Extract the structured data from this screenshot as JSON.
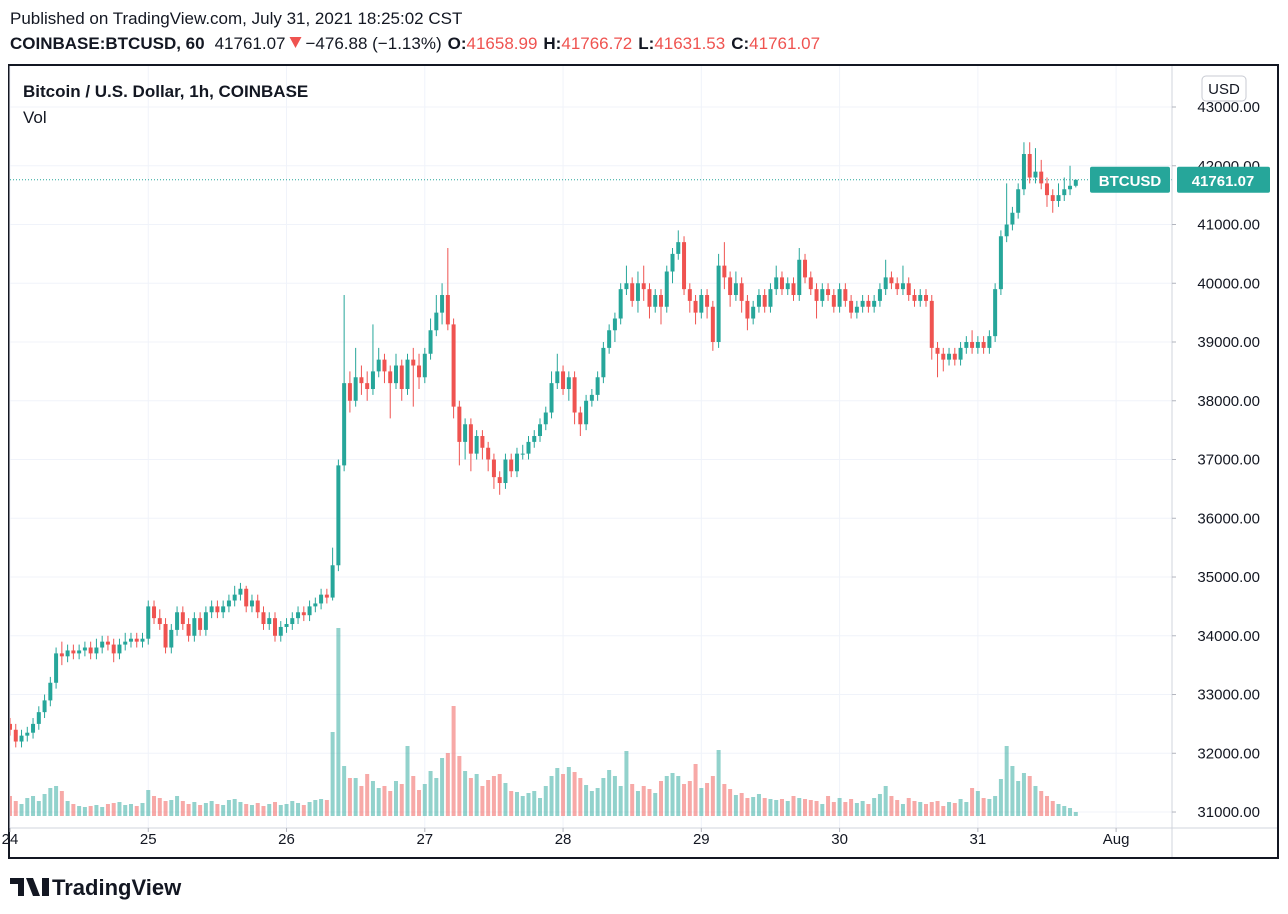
{
  "header": {
    "published": "Published on TradingView.com, July 31, 2021 18:25:02 CST",
    "symbol": "COINBASE:BTCUSD, 60",
    "change": "−476.88 (−1.13%)",
    "o_label": "O:",
    "h_label": "H:",
    "l_label": "L:",
    "c_label": "C:"
  },
  "footer": {
    "brand": "TradingView"
  },
  "chart_data": {
    "type": "candlestick",
    "title": "Bitcoin / U.S. Dollar, 1h, COINBASE",
    "volume_label": "Vol",
    "currency": "USD",
    "symbol": "BTCUSD",
    "up_color": "#26a69a",
    "down_color": "#ef5350",
    "grid": true,
    "xlim": [
      0,
      201.7
    ],
    "xticks": [
      {
        "value": 0,
        "label": "24"
      },
      {
        "value": 24,
        "label": "25"
      },
      {
        "value": 48,
        "label": "26"
      },
      {
        "value": 72,
        "label": "27"
      },
      {
        "value": 96,
        "label": "28"
      },
      {
        "value": 120,
        "label": "29"
      },
      {
        "value": 144,
        "label": "30"
      },
      {
        "value": 168,
        "label": "31"
      },
      {
        "value": 192,
        "label": "Aug"
      }
    ],
    "ylim": [
      30728,
      43698
    ],
    "yticks": [
      {
        "value": 31000,
        "label": "31000.00"
      },
      {
        "value": 32000,
        "label": "32000.00"
      },
      {
        "value": 33000,
        "label": "33000.00"
      },
      {
        "value": 34000,
        "label": "34000.00"
      },
      {
        "value": 35000,
        "label": "35000.00"
      },
      {
        "value": 36000,
        "label": "36000.00"
      },
      {
        "value": 37000,
        "label": "37000.00"
      },
      {
        "value": 38000,
        "label": "38000.00"
      },
      {
        "value": 39000,
        "label": "39000.00"
      },
      {
        "value": 40000,
        "label": "40000.00"
      },
      {
        "value": 41000,
        "label": "41000.00"
      },
      {
        "value": 42000,
        "label": "42000.00"
      },
      {
        "value": 43000,
        "label": "43000.00"
      }
    ],
    "vlim": [
      0,
      2500
    ],
    "open": [
      32500,
      32400,
      32200,
      32300,
      32350,
      32500,
      32700,
      32900,
      33200,
      33700,
      33650,
      33750,
      33700,
      33750,
      33800,
      33700,
      33800,
      33900,
      33850,
      33700,
      33850,
      33900,
      33950,
      33900,
      33950,
      34500,
      34300,
      34200,
      33800,
      34100,
      34400,
      34200,
      34000,
      34300,
      34100,
      34400,
      34500,
      34400,
      34500,
      34600,
      34700,
      34800,
      34500,
      34600,
      34400,
      34200,
      34300,
      34000,
      34150,
      34200,
      34300,
      34400,
      34350,
      34500,
      34550,
      34700,
      34650,
      35200,
      36900,
      38300,
      38000,
      38400,
      38300,
      38200,
      38500,
      38700,
      38500,
      38300,
      38600,
      38200,
      38700,
      38600,
      38400,
      38800,
      39200,
      39500,
      39800,
      39300,
      37900,
      37300,
      37600,
      37100,
      37400,
      37200,
      37000,
      36700,
      36600,
      37000,
      36800,
      37100,
      37100,
      37300,
      37400,
      37600,
      37800,
      38300,
      38500,
      38200,
      38400,
      37800,
      37600,
      38000,
      38100,
      38400,
      38900,
      39200,
      39400,
      39900,
      40000,
      39700,
      40000,
      39900,
      39600,
      39800,
      39600,
      40200,
      40500,
      40700,
      39900,
      39700,
      39500,
      39800,
      39600,
      39000,
      40300,
      40100,
      39800,
      40000,
      39700,
      39400,
      39600,
      39800,
      39600,
      39900,
      40100,
      39900,
      40000,
      39800,
      40400,
      40100,
      39900,
      39700,
      39900,
      39800,
      39600,
      39900,
      39700,
      39500,
      39600,
      39700,
      39600,
      39700,
      39900,
      40100,
      40000,
      39900,
      40000,
      39800,
      39700,
      39800,
      39700,
      38900,
      38800,
      38700,
      38800,
      38700,
      38900,
      39000,
      38900,
      39000,
      38900,
      39100,
      39900,
      40800,
      41000,
      41200,
      41600,
      42200,
      41800,
      41900,
      41700,
      41500,
      41400,
      41500,
      41600,
      41658.99
    ],
    "high": [
      32600,
      32500,
      32400,
      32450,
      32600,
      32800,
      33000,
      33300,
      33800,
      33900,
      33850,
      33850,
      33850,
      33900,
      33900,
      33950,
      34000,
      34000,
      33950,
      33950,
      34050,
      34050,
      34050,
      34050,
      34600,
      34600,
      34450,
      34300,
      34200,
      34500,
      34500,
      34300,
      34400,
      34400,
      34500,
      34600,
      34600,
      34600,
      34700,
      34850,
      34900,
      34850,
      34700,
      34700,
      34500,
      34400,
      34400,
      34250,
      34300,
      34400,
      34500,
      34500,
      34600,
      34650,
      34800,
      34800,
      35500,
      37000,
      39800,
      38500,
      38900,
      38600,
      38500,
      39300,
      38900,
      38800,
      38600,
      38800,
      38700,
      38800,
      38900,
      38800,
      38900,
      39400,
      39800,
      40000,
      40600,
      39400,
      38000,
      37700,
      37700,
      37500,
      37500,
      37300,
      37100,
      36800,
      37100,
      37100,
      37200,
      37250,
      37400,
      37500,
      37700,
      37900,
      38500,
      38800,
      38600,
      38500,
      38500,
      37900,
      38100,
      38200,
      38500,
      39000,
      39300,
      39500,
      40000,
      40300,
      40100,
      40200,
      40300,
      40000,
      39900,
      39900,
      40300,
      40600,
      40900,
      40800,
      40000,
      39800,
      39900,
      39900,
      39700,
      40500,
      40700,
      40200,
      40200,
      40100,
      39800,
      39700,
      39900,
      39900,
      40000,
      40300,
      40200,
      40100,
      40100,
      40600,
      40500,
      40200,
      40000,
      40000,
      40000,
      39900,
      40000,
      40000,
      39800,
      39700,
      39800,
      39800,
      39800,
      40000,
      40400,
      40200,
      40100,
      40300,
      40100,
      39900,
      39900,
      39900,
      39800,
      39000,
      38900,
      38900,
      38900,
      39000,
      39100,
      39200,
      39100,
      39100,
      39200,
      40000,
      40900,
      41700,
      41300,
      41700,
      42400,
      42400,
      42300,
      42100,
      41800,
      41600,
      41700,
      41800,
      42000,
      41766.72
    ],
    "low": [
      32300,
      32100,
      32100,
      32200,
      32250,
      32400,
      32600,
      32800,
      33100,
      33500,
      33550,
      33600,
      33600,
      33650,
      33600,
      33600,
      33700,
      33750,
      33550,
      33600,
      33750,
      33800,
      33800,
      33800,
      33850,
      34200,
      34100,
      33700,
      33700,
      34000,
      34100,
      33900,
      33900,
      34000,
      34000,
      34300,
      34300,
      34300,
      34400,
      34500,
      34600,
      34400,
      34400,
      34300,
      34100,
      34100,
      33900,
      33900,
      34050,
      34100,
      34200,
      34250,
      34250,
      34400,
      34450,
      34550,
      34600,
      35100,
      36800,
      37800,
      37900,
      38100,
      38000,
      38100,
      38400,
      38300,
      37700,
      38200,
      38000,
      38100,
      37900,
      38200,
      38300,
      38700,
      39100,
      39300,
      39200,
      37700,
      36900,
      37000,
      36800,
      37000,
      37000,
      36800,
      36500,
      36400,
      36500,
      36700,
      36700,
      37000,
      37000,
      37200,
      37300,
      37500,
      37700,
      38200,
      38100,
      38000,
      37600,
      37400,
      37500,
      37900,
      38000,
      38300,
      38800,
      39000,
      39300,
      39800,
      39600,
      39500,
      39700,
      39400,
      39500,
      39300,
      39500,
      40000,
      40400,
      39800,
      39500,
      39300,
      39400,
      39400,
      38850,
      38900,
      39900,
      39600,
      39700,
      39500,
      39200,
      39300,
      39500,
      39500,
      39500,
      39800,
      39800,
      39800,
      39700,
      39700,
      40000,
      39800,
      39400,
      39600,
      39700,
      39500,
      39500,
      39600,
      39400,
      39400,
      39500,
      39500,
      39500,
      39600,
      39800,
      39900,
      39800,
      39800,
      39700,
      39600,
      39600,
      39600,
      38700,
      38400,
      38500,
      38600,
      38600,
      38600,
      38800,
      38800,
      38800,
      38800,
      38800,
      39000,
      39800,
      40700,
      40900,
      41100,
      41500,
      41700,
      41700,
      41600,
      41300,
      41200,
      41300,
      41400,
      41500,
      41631.53
    ],
    "close": [
      32400,
      32200,
      32300,
      32350,
      32500,
      32700,
      32900,
      33200,
      33700,
      33650,
      33750,
      33700,
      33750,
      33800,
      33700,
      33800,
      33900,
      33850,
      33700,
      33850,
      33900,
      33950,
      33900,
      33950,
      34500,
      34300,
      34200,
      33800,
      34100,
      34400,
      34200,
      34000,
      34300,
      34100,
      34400,
      34500,
      34400,
      34500,
      34600,
      34700,
      34800,
      34500,
      34600,
      34400,
      34200,
      34300,
      34000,
      34150,
      34200,
      34300,
      34400,
      34350,
      34500,
      34550,
      34700,
      34650,
      35200,
      36900,
      38300,
      38000,
      38400,
      38300,
      38200,
      38500,
      38700,
      38500,
      38300,
      38600,
      38200,
      38700,
      38600,
      38400,
      38800,
      39200,
      39500,
      39800,
      39300,
      37900,
      37300,
      37600,
      37100,
      37400,
      37200,
      37000,
      36700,
      36600,
      37000,
      36800,
      37100,
      37100,
      37300,
      37400,
      37600,
      37800,
      38300,
      38500,
      38200,
      38400,
      37800,
      37600,
      38000,
      38100,
      38400,
      38900,
      39200,
      39400,
      39900,
      40000,
      39700,
      40000,
      39900,
      39600,
      39800,
      39600,
      40200,
      40500,
      40700,
      39900,
      39700,
      39500,
      39800,
      39600,
      39000,
      40300,
      40100,
      39800,
      40000,
      39700,
      39400,
      39600,
      39800,
      39600,
      39900,
      40100,
      39900,
      40000,
      39800,
      40400,
      40100,
      39900,
      39700,
      39900,
      39800,
      39600,
      39900,
      39700,
      39500,
      39600,
      39700,
      39600,
      39700,
      39900,
      40100,
      40000,
      39900,
      40000,
      39800,
      39700,
      39800,
      39700,
      38900,
      38800,
      38700,
      38800,
      38700,
      38900,
      39000,
      38900,
      39000,
      38900,
      39100,
      39900,
      40800,
      41000,
      41200,
      41600,
      42200,
      41800,
      41900,
      41700,
      41500,
      41400,
      41500,
      41600,
      41658.99,
      41761.07
    ],
    "volume": [
      200,
      150,
      120,
      180,
      200,
      150,
      220,
      280,
      300,
      250,
      150,
      120,
      100,
      90,
      100,
      110,
      90,
      120,
      130,
      140,
      110,
      120,
      100,
      130,
      260,
      200,
      180,
      150,
      160,
      200,
      150,
      120,
      140,
      110,
      130,
      150,
      120,
      110,
      160,
      170,
      140,
      120,
      110,
      130,
      100,
      120,
      140,
      110,
      120,
      150,
      130,
      110,
      140,
      160,
      170,
      160,
      840,
      1880,
      500,
      380,
      380,
      300,
      420,
      350,
      280,
      300,
      250,
      350,
      320,
      700,
      400,
      260,
      320,
      450,
      380,
      580,
      630,
      1100,
      600,
      450,
      380,
      420,
      300,
      360,
      400,
      420,
      330,
      250,
      240,
      200,
      230,
      250,
      180,
      300,
      400,
      480,
      420,
      490,
      440,
      380,
      310,
      250,
      280,
      380,
      460,
      400,
      300,
      650,
      320,
      250,
      300,
      270,
      230,
      350,
      400,
      430,
      400,
      320,
      350,
      520,
      280,
      330,
      400,
      660,
      320,
      270,
      210,
      230,
      180,
      190,
      220,
      180,
      170,
      160,
      170,
      150,
      200,
      180,
      170,
      160,
      150,
      120,
      200,
      140,
      180,
      140,
      170,
      130,
      150,
      120,
      180,
      220,
      300,
      200,
      160,
      120,
      180,
      150,
      140,
      120,
      140,
      150,
      100,
      140,
      130,
      170,
      140,
      280,
      250,
      180,
      170,
      200,
      370,
      700,
      500,
      350,
      430,
      400,
      300,
      250,
      200,
      150,
      120,
      100,
      80,
      40
    ]
  }
}
